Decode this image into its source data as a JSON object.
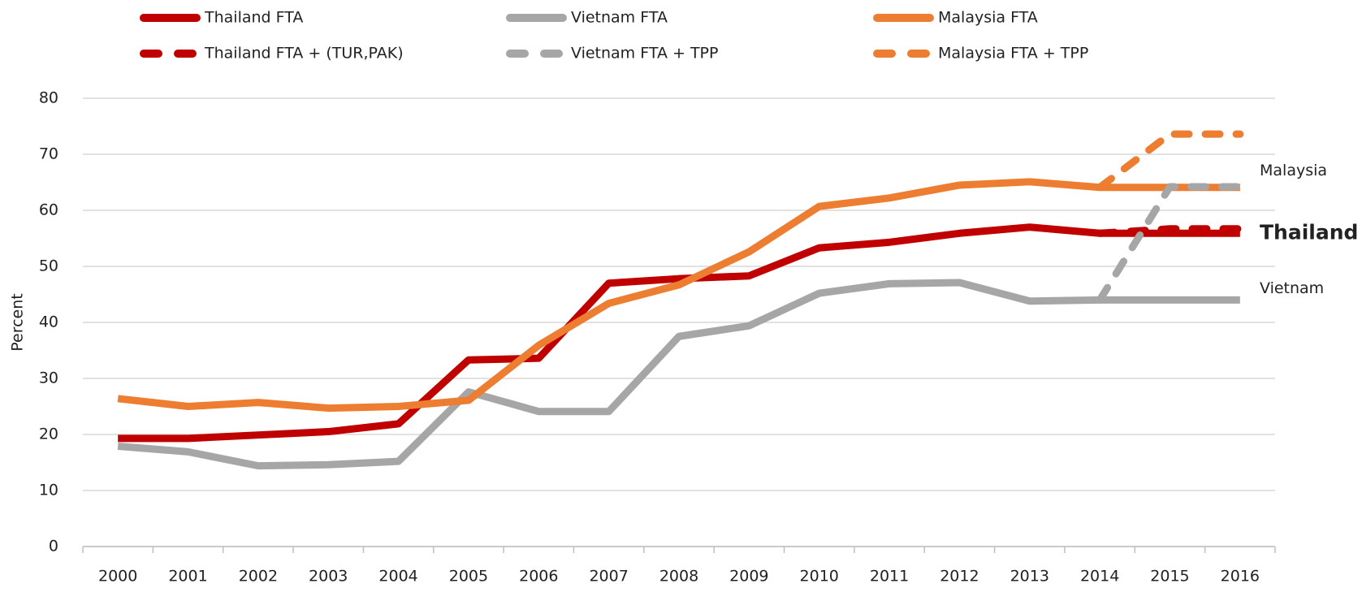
{
  "chart_data": {
    "type": "line",
    "ylabel": "Percent",
    "categories": [
      "2000",
      "2001",
      "2002",
      "2003",
      "2004",
      "2005",
      "2006",
      "2007",
      "2008",
      "2009",
      "2010",
      "2011",
      "2012",
      "2013",
      "2014",
      "2015",
      "2016"
    ],
    "series": [
      {
        "name": "Thailand FTA",
        "color": "#c00000",
        "dash": false,
        "values": [
          19.3,
          19.3,
          19.9,
          20.5,
          21.9,
          33.3,
          33.6,
          47.0,
          47.8,
          48.3,
          53.3,
          54.3,
          55.9,
          57.0,
          55.9,
          55.9,
          55.9
        ]
      },
      {
        "name": "Vietnam FTA",
        "color": "#a6a6a6",
        "dash": false,
        "values": [
          17.9,
          16.9,
          14.4,
          14.6,
          15.2,
          27.6,
          24.1,
          24.1,
          37.5,
          39.4,
          45.2,
          46.9,
          47.1,
          43.8,
          44.0,
          44.0,
          44.0
        ]
      },
      {
        "name": "Malaysia FTA",
        "color": "#ed7d31",
        "dash": false,
        "values": [
          26.4,
          25.0,
          25.7,
          24.7,
          25.0,
          26.1,
          35.9,
          43.4,
          46.7,
          52.6,
          60.7,
          62.2,
          64.5,
          65.1,
          64.1,
          64.1,
          64.1
        ]
      },
      {
        "name": "Thailand FTA + (TUR,PAK)",
        "color": "#c00000",
        "dash": true,
        "values": [
          null,
          null,
          null,
          null,
          null,
          null,
          null,
          null,
          null,
          null,
          null,
          null,
          null,
          null,
          55.9,
          56.7,
          56.7
        ]
      },
      {
        "name": "Vietnam FTA + TPP",
        "color": "#a6a6a6",
        "dash": true,
        "values": [
          null,
          null,
          null,
          null,
          null,
          null,
          null,
          null,
          null,
          null,
          null,
          null,
          null,
          null,
          44.0,
          64.2,
          64.2
        ]
      },
      {
        "name": "Malaysia FTA + TPP",
        "color": "#ed7d31",
        "dash": true,
        "values": [
          null,
          null,
          null,
          null,
          null,
          null,
          null,
          null,
          null,
          null,
          null,
          null,
          null,
          null,
          64.1,
          73.6,
          73.6
        ]
      }
    ],
    "annotations": [
      "Malaysia",
      "Thailand",
      "Vietnam"
    ],
    "ylim": [
      0,
      80
    ],
    "yticks": [
      0,
      10,
      20,
      30,
      40,
      50,
      60,
      70,
      80
    ],
    "grid": true
  }
}
